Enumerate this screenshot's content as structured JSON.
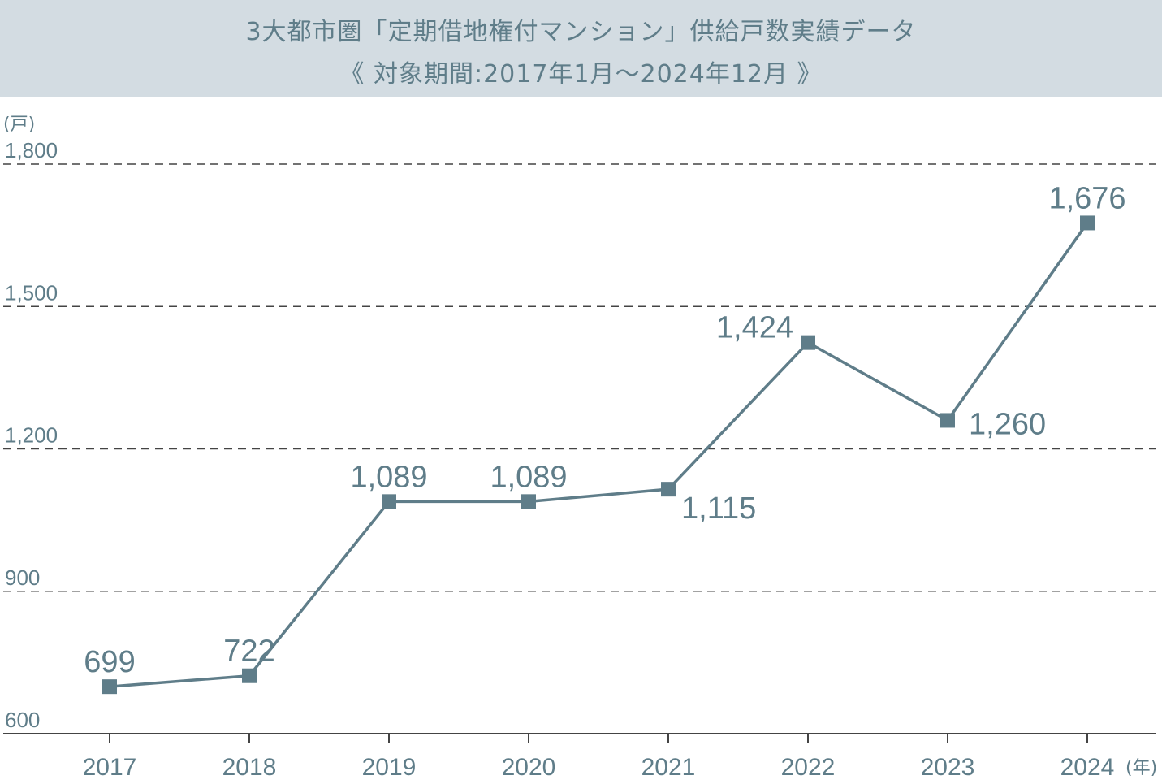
{
  "header": {
    "title": "3大都市圏「定期借地権付マンション」供給戸数実績データ",
    "subtitle": "《 対象期間:2017年1月〜2024年12月 》"
  },
  "colors": {
    "header_bg": "#d3dce2",
    "accent": "#5f7d89",
    "line": "#5f7d89",
    "grid": "#444444"
  },
  "chart_data": {
    "type": "line",
    "title": "3大都市圏「定期借地権付マンション」供給戸数実績データ",
    "subtitle": "《 対象期間:2017年1月〜2024年12月 》",
    "y_unit": "(戸)",
    "x_unit": "(年)",
    "categories": [
      "2017",
      "2018",
      "2019",
      "2020",
      "2021",
      "2022",
      "2023",
      "2024"
    ],
    "values": [
      699,
      722,
      1089,
      1089,
      1115,
      1424,
      1260,
      1676
    ],
    "value_labels": [
      "699",
      "722",
      "1,089",
      "1,089",
      "1,115",
      "1,424",
      "1,260",
      "1,676"
    ],
    "label_placement": [
      "above",
      "above",
      "above",
      "above",
      "below-right",
      "above-left",
      "right",
      "above"
    ],
    "ylim": [
      600,
      1800
    ],
    "yticks": [
      600,
      900,
      1200,
      1500,
      1800
    ],
    "ytick_labels": [
      "600",
      "900",
      "1,200",
      "1,500",
      "1,800"
    ],
    "grid": "dashed horizontal",
    "marker": "square"
  }
}
